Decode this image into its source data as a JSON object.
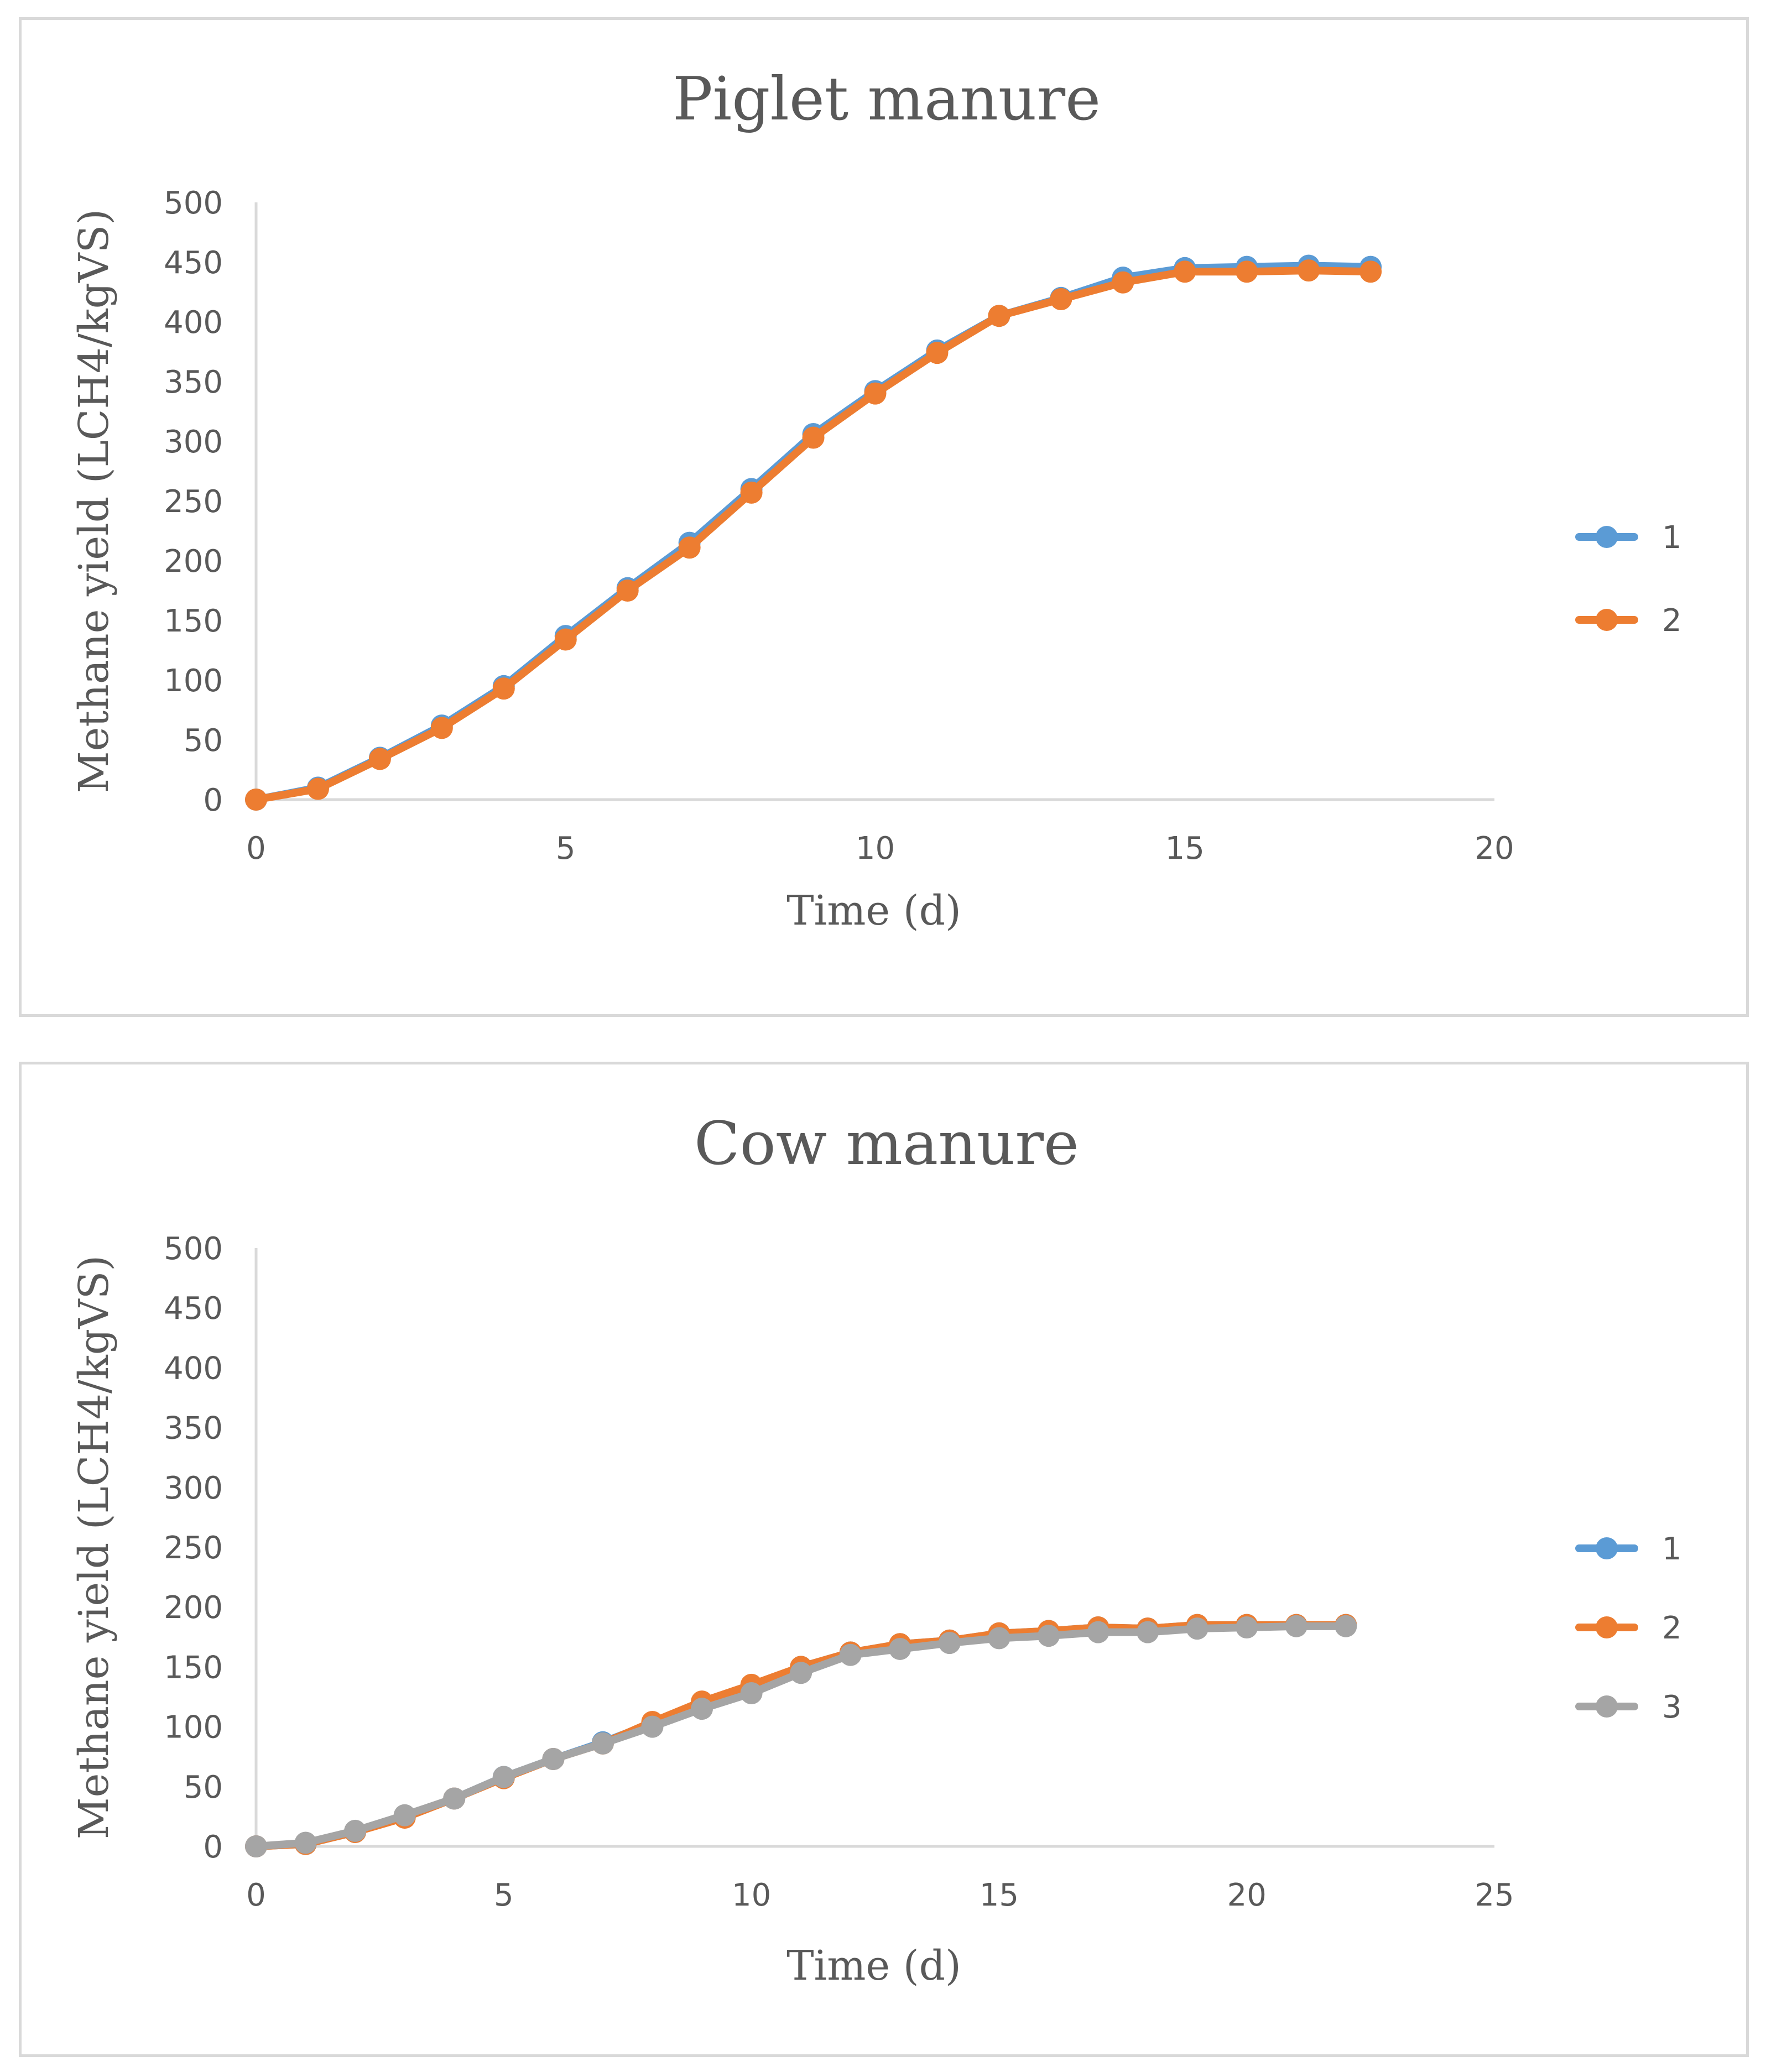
{
  "chart_data": [
    {
      "type": "line",
      "title": "Piglet manure",
      "xlabel": "Time  (d)",
      "ylabel": "Methane yield (LCH4/kgVS)",
      "xlim": [
        0,
        20
      ],
      "ylim": [
        0,
        500
      ],
      "xticks": [
        "0",
        "5",
        "10",
        "15",
        "20"
      ],
      "yticks": [
        "0",
        "50",
        "100",
        "150",
        "200",
        "250",
        "300",
        "350",
        "400",
        "450",
        "500"
      ],
      "x": [
        0,
        1,
        2,
        3,
        4,
        5,
        6,
        7,
        8,
        9,
        10,
        11,
        12,
        13,
        14,
        15,
        16,
        17,
        18
      ],
      "grid": false,
      "legend_position": "right",
      "series": [
        {
          "name": "1",
          "color": "#5b9bd5",
          "values": [
            0,
            10,
            35,
            62,
            95,
            137,
            177,
            215,
            260,
            306,
            342,
            376,
            405,
            420,
            437,
            445,
            446,
            447,
            446
          ]
        },
        {
          "name": "2",
          "color": "#ed7d31",
          "values": [
            0,
            9,
            34,
            60,
            93,
            134,
            175,
            211,
            257,
            303,
            340,
            374,
            405,
            419,
            433,
            442,
            442,
            443,
            442
          ]
        }
      ]
    },
    {
      "type": "line",
      "title": "Cow manure",
      "xlabel": "Time (d)",
      "ylabel": "Methane yield (LCH4/kgVS)",
      "xlim": [
        0,
        25
      ],
      "ylim": [
        0,
        500
      ],
      "xticks": [
        "0",
        "5",
        "10",
        "15",
        "20",
        "25"
      ],
      "yticks": [
        "0",
        "50",
        "100",
        "150",
        "200",
        "250",
        "300",
        "350",
        "400",
        "450",
        "500"
      ],
      "x": [
        0,
        1,
        2,
        3,
        4,
        5,
        6,
        7,
        8,
        9,
        10,
        11,
        12,
        13,
        14,
        15,
        16,
        17,
        18,
        19,
        20,
        21,
        22
      ],
      "grid": false,
      "legend_position": "right",
      "series": [
        {
          "name": "1",
          "color": "#5b9bd5",
          "values": [
            0,
            2,
            12,
            25,
            40,
            58,
            73,
            87,
            103,
            120,
            134,
            150,
            162,
            169,
            172,
            178,
            180,
            183,
            182,
            185,
            185,
            185,
            185
          ]
        },
        {
          "name": "2",
          "color": "#ed7d31",
          "values": [
            0,
            2,
            12,
            24,
            40,
            57,
            73,
            86,
            104,
            121,
            135,
            150,
            162,
            169,
            172,
            178,
            180,
            183,
            182,
            185,
            185,
            185,
            185
          ]
        },
        {
          "name": "3",
          "color": "#a5a5a5",
          "values": [
            0,
            3,
            13,
            26,
            40,
            58,
            73,
            86,
            100,
            115,
            128,
            145,
            160,
            165,
            170,
            174,
            176,
            179,
            179,
            182,
            183,
            184,
            184
          ]
        }
      ]
    }
  ]
}
